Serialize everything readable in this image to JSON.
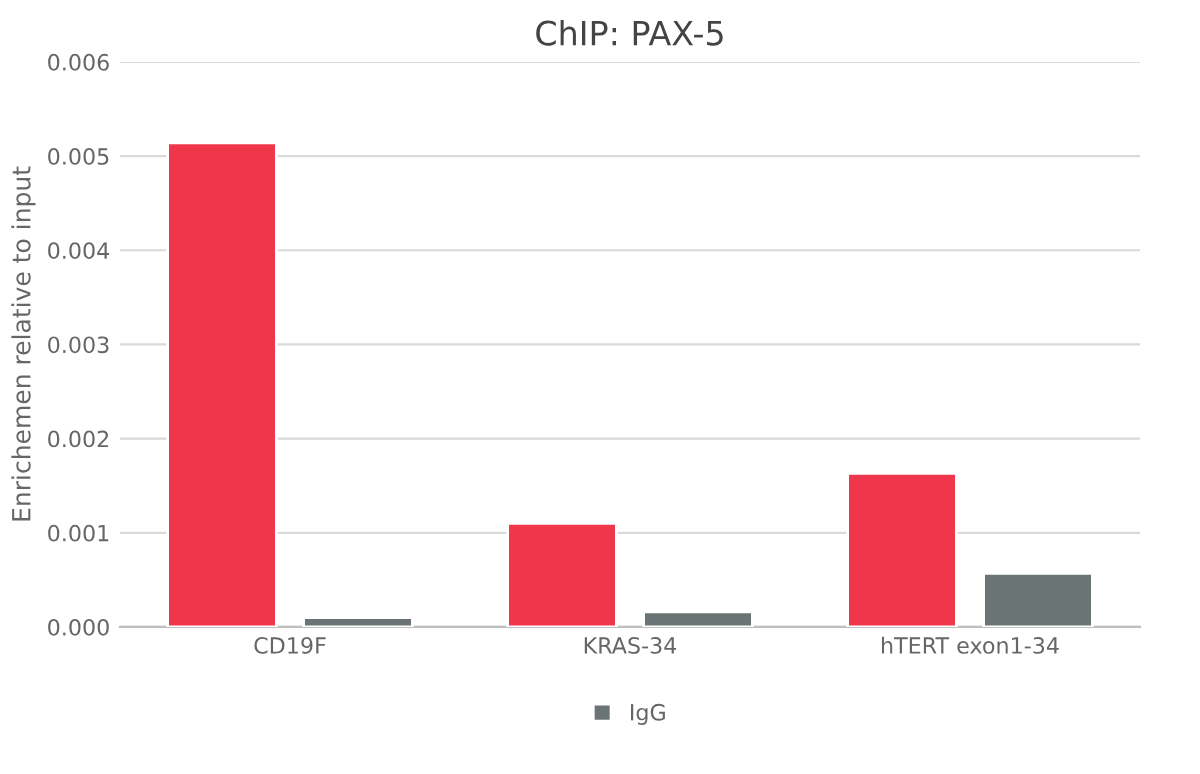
{
  "chart_data": {
    "type": "bar",
    "title": "ChIP: PAX-5",
    "ylabel": "Enrichemen relative to input",
    "categories": [
      "CD19F",
      "KRAS-34",
      "hTERT exon1-34"
    ],
    "series": [
      {
        "color": "#f0364b",
        "values": [
          0.00514,
          0.0011,
          0.00163
        ]
      },
      {
        "name": "IgG",
        "color": "#6b7474",
        "values": [
          0.0001,
          0.00016,
          0.00057
        ]
      }
    ],
    "ylim": [
      0,
      0.006
    ],
    "yticks": [
      {
        "value": 0,
        "label": "0.000"
      },
      {
        "value": 0.001,
        "label": "0.001"
      },
      {
        "value": 0.002,
        "label": "0.002"
      },
      {
        "value": 0.003,
        "label": "0.003"
      },
      {
        "value": 0.004,
        "label": "0.004"
      },
      {
        "value": 0.005,
        "label": "0.005"
      },
      {
        "value": 0.006,
        "label": "0.006"
      }
    ],
    "grid": "y",
    "legend": "bottom"
  }
}
